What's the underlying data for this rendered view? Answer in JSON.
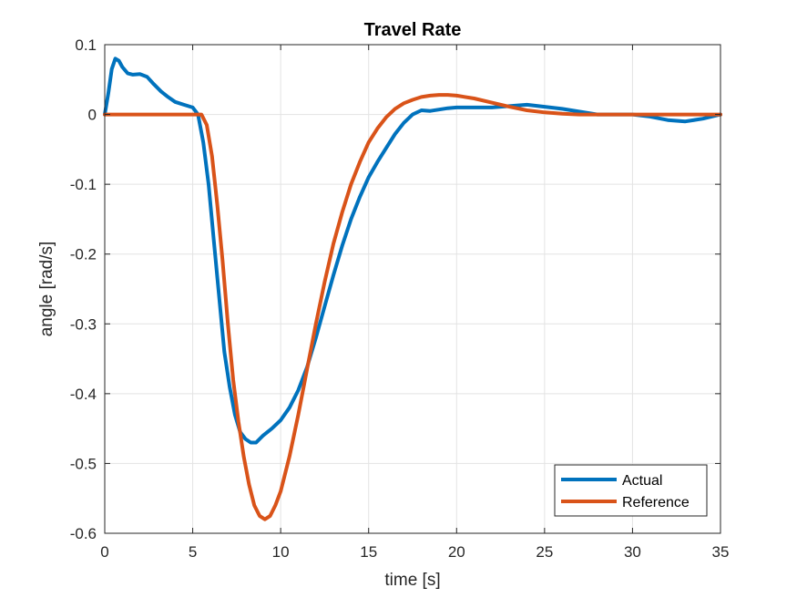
{
  "chart_data": {
    "type": "line",
    "title": "Travel Rate",
    "xlabel": "time [s]",
    "ylabel": "angle [rad/s]",
    "xlim": [
      0,
      35
    ],
    "ylim": [
      -0.6,
      0.1
    ],
    "xticks": [
      0,
      5,
      10,
      15,
      20,
      25,
      30,
      35
    ],
    "yticks": [
      -0.6,
      -0.5,
      -0.4,
      -0.3,
      -0.2,
      -0.1,
      0,
      0.1
    ],
    "xtick_labels": [
      "0",
      "5",
      "10",
      "15",
      "20",
      "25",
      "30",
      "35"
    ],
    "ytick_labels": [
      "-0.6",
      "-0.5",
      "-0.4",
      "-0.3",
      "-0.2",
      "-0.1",
      "0",
      "0.1"
    ],
    "grid": true,
    "legend_position": "bottom-right",
    "series": [
      {
        "name": "Actual",
        "color": "#0072BD",
        "x": [
          0,
          0.2,
          0.4,
          0.6,
          0.8,
          1.0,
          1.3,
          1.6,
          2.0,
          2.4,
          2.8,
          3.2,
          3.6,
          4.0,
          4.5,
          5.0,
          5.3,
          5.6,
          5.9,
          6.2,
          6.5,
          6.8,
          7.1,
          7.4,
          7.7,
          8.0,
          8.3,
          8.6,
          9.0,
          9.5,
          10.0,
          10.5,
          11.0,
          11.5,
          12.0,
          12.5,
          13.0,
          13.5,
          14.0,
          14.5,
          15.0,
          15.5,
          16.0,
          16.5,
          17.0,
          17.5,
          18.0,
          18.5,
          19.0,
          19.5,
          20.0,
          21.0,
          22.0,
          23.0,
          24.0,
          25.0,
          26.0,
          27.0,
          28.0,
          29.0,
          30.0,
          31.0,
          32.0,
          33.0,
          34.0,
          35.0
        ],
        "y": [
          0.0,
          0.03,
          0.065,
          0.08,
          0.077,
          0.068,
          0.059,
          0.057,
          0.058,
          0.054,
          0.043,
          0.033,
          0.025,
          0.018,
          0.014,
          0.01,
          0.0,
          -0.04,
          -0.1,
          -0.18,
          -0.26,
          -0.34,
          -0.39,
          -0.43,
          -0.455,
          -0.465,
          -0.47,
          -0.47,
          -0.46,
          -0.45,
          -0.438,
          -0.42,
          -0.395,
          -0.362,
          -0.32,
          -0.275,
          -0.23,
          -0.188,
          -0.15,
          -0.118,
          -0.09,
          -0.068,
          -0.048,
          -0.028,
          -0.012,
          0.0,
          0.006,
          0.005,
          0.007,
          0.009,
          0.01,
          0.01,
          0.01,
          0.012,
          0.014,
          0.011,
          0.008,
          0.004,
          0.0,
          0.0,
          0.0,
          -0.003,
          -0.008,
          -0.01,
          -0.006,
          0.0
        ]
      },
      {
        "name": "Reference",
        "color": "#D95319",
        "x": [
          0,
          1,
          2,
          3,
          4,
          5,
          5.5,
          5.8,
          6.1,
          6.4,
          6.7,
          7.0,
          7.3,
          7.6,
          7.9,
          8.2,
          8.5,
          8.8,
          9.1,
          9.4,
          9.7,
          10.0,
          10.5,
          11.0,
          11.5,
          12.0,
          12.5,
          13.0,
          13.5,
          14.0,
          14.5,
          15.0,
          15.5,
          16.0,
          16.5,
          17.0,
          17.5,
          18.0,
          18.5,
          19.0,
          19.5,
          20.0,
          21.0,
          22.0,
          23.0,
          24.0,
          25.0,
          26.0,
          27.0,
          28.0,
          29.0,
          30.0,
          32.0,
          35.0
        ],
        "y": [
          0,
          0,
          0,
          0,
          0,
          0,
          0.0,
          -0.015,
          -0.06,
          -0.13,
          -0.21,
          -0.3,
          -0.38,
          -0.44,
          -0.49,
          -0.53,
          -0.56,
          -0.575,
          -0.58,
          -0.575,
          -0.56,
          -0.54,
          -0.49,
          -0.43,
          -0.365,
          -0.3,
          -0.24,
          -0.185,
          -0.14,
          -0.1,
          -0.068,
          -0.04,
          -0.02,
          -0.004,
          0.008,
          0.016,
          0.021,
          0.025,
          0.027,
          0.028,
          0.028,
          0.027,
          0.023,
          0.017,
          0.011,
          0.006,
          0.003,
          0.001,
          0.0,
          0.0,
          0.0,
          0.0,
          0.0,
          0.0
        ]
      }
    ]
  }
}
